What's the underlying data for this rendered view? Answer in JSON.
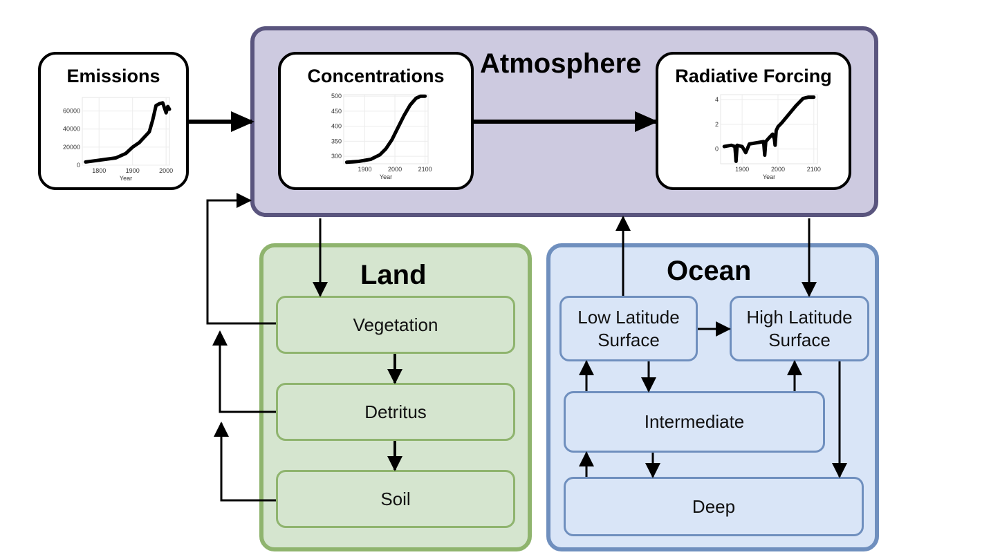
{
  "atmosphere": {
    "title": "Atmosphere"
  },
  "land": {
    "title": "Land",
    "pools": {
      "vegetation": "Vegetation",
      "detritus": "Detritus",
      "soil": "Soil"
    }
  },
  "ocean": {
    "title": "Ocean",
    "pools": {
      "low_latitude": "Low Latitude\nSurface",
      "high_latitude": "High Latitude\nSurface",
      "intermediate": "Intermediate",
      "deep": "Deep"
    }
  },
  "panels": {
    "emissions": {
      "title": "Emissions"
    },
    "concentrations": {
      "title": "Concentrations"
    },
    "radiative_forcing": {
      "title": "Radiative Forcing"
    }
  },
  "chart_data": [
    {
      "type": "line",
      "title": "Emissions",
      "xlabel": "Year",
      "ylabel": "",
      "xlim": [
        1750,
        2010
      ],
      "ylim": [
        0,
        75000
      ],
      "x_ticks": [
        "1800",
        "1900",
        "2000"
      ],
      "y_ticks": [
        "0",
        "20000",
        "40000",
        "60000"
      ],
      "series": [
        {
          "x": [
            1760,
            1800,
            1850,
            1880,
            1900,
            1920,
            1950,
            1960,
            1970,
            1980,
            1990,
            2000,
            2005,
            2010
          ],
          "y": [
            3500,
            5500,
            8000,
            13000,
            20000,
            25000,
            37000,
            50000,
            66000,
            68000,
            69000,
            58000,
            65000,
            62000
          ]
        }
      ]
    },
    {
      "type": "line",
      "title": "Concentrations",
      "xlabel": "Year",
      "ylabel": "",
      "xlim": [
        1830,
        2110
      ],
      "ylim": [
        275,
        505
      ],
      "x_ticks": [
        "1900",
        "2000",
        "2100"
      ],
      "y_ticks": [
        "300",
        "350",
        "400",
        "450",
        "500"
      ],
      "series": [
        {
          "x": [
            1840,
            1880,
            1920,
            1950,
            1970,
            1990,
            2010,
            2030,
            2050,
            2070,
            2085,
            2100
          ],
          "y": [
            280,
            283,
            290,
            305,
            325,
            355,
            395,
            435,
            470,
            493,
            500,
            500
          ]
        }
      ]
    },
    {
      "type": "line",
      "title": "Radiative Forcing",
      "xlabel": "Year",
      "ylabel": "",
      "xlim": [
        1840,
        2110
      ],
      "ylim": [
        -1.2,
        4.4
      ],
      "x_ticks": [
        "1900",
        "2000",
        "2100"
      ],
      "y_ticks": [
        "0",
        "2",
        "4"
      ],
      "series": [
        {
          "x": [
            1850,
            1870,
            1880,
            1883,
            1886,
            1900,
            1910,
            1920,
            1940,
            1960,
            1963,
            1966,
            1975,
            1985,
            1990,
            1992,
            1995,
            2000,
            2010,
            2030,
            2050,
            2070,
            2085,
            2100
          ],
          "y": [
            0.2,
            0.3,
            0.2,
            -1.0,
            0.3,
            0.2,
            -0.3,
            0.4,
            0.5,
            0.6,
            -0.5,
            0.6,
            0.9,
            1.2,
            0.8,
            0.3,
            1.5,
            1.8,
            2.1,
            2.8,
            3.5,
            4.1,
            4.2,
            4.2
          ]
        }
      ]
    }
  ]
}
